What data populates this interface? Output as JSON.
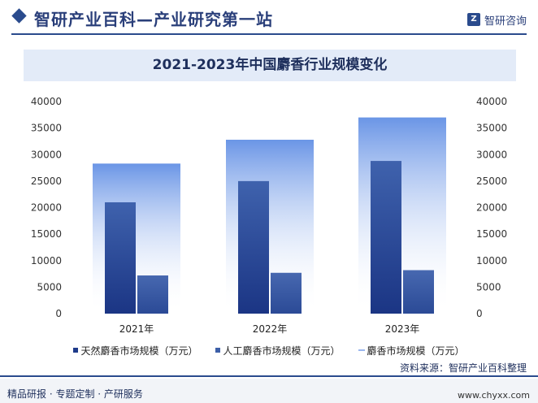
{
  "header": {
    "title": "智研产业百科—产业研究第一站",
    "brand_logo": "Z",
    "brand_name": "智研咨询"
  },
  "chart_data": {
    "type": "bar",
    "title": "2021-2023年中国麝香行业规模变化",
    "categories": [
      "2021年",
      "2022年",
      "2023年"
    ],
    "series": [
      {
        "name": "天然麝香市场规模（万元）",
        "values": [
          21000,
          25000,
          28800
        ],
        "color": "#2a4a9a"
      },
      {
        "name": "人工麝香市场规模（万元）",
        "values": [
          7200,
          7700,
          8200
        ],
        "color": "#3d5fa8"
      },
      {
        "name": "麝香市场规模（万元）",
        "values": [
          28300,
          32800,
          37000
        ],
        "color": "#6a95e6"
      }
    ],
    "ylim": [
      0,
      40000
    ],
    "yticks": [
      "0",
      "5000",
      "10000",
      "15000",
      "20000",
      "25000",
      "30000",
      "35000",
      "40000"
    ],
    "grid": false,
    "legend_position": "bottom"
  },
  "source": "资料来源：智研产业百科整理",
  "footer": {
    "left": "精品研报 · 专题定制 · 产研服务",
    "right": "www.chyxx.com"
  }
}
